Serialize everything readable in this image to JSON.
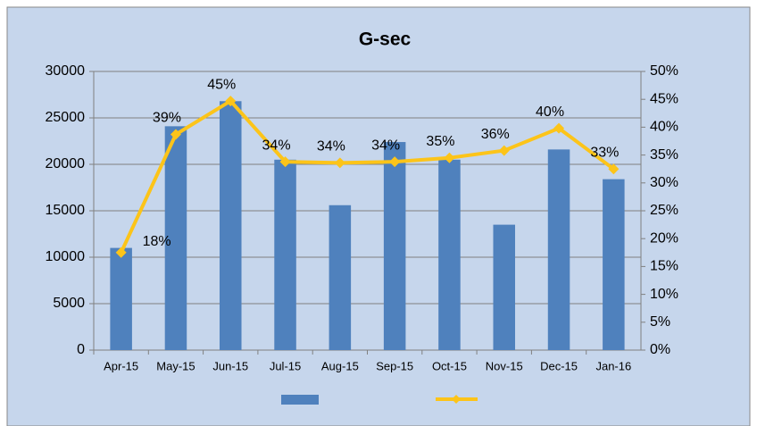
{
  "chart_data": {
    "type": "bar-line",
    "title": "G-sec",
    "categories": [
      "Apr-15",
      "May-15",
      "Jun-15",
      "Jul-15",
      "Aug-15",
      "Sep-15",
      "Oct-15",
      "Nov-15",
      "Dec-15",
      "Jan-16"
    ],
    "series": [
      {
        "type": "bar",
        "color": "#4f81bd",
        "values": [
          11000,
          24100,
          26800,
          20500,
          15600,
          22400,
          20500,
          13500,
          21600,
          18400
        ]
      },
      {
        "type": "line",
        "axis": "y2",
        "color": "#fcc419",
        "values": [
          17.5,
          38.7,
          44.7,
          33.8,
          33.6,
          33.8,
          34.5,
          35.8,
          39.8,
          32.5
        ],
        "value_labels": [
          "18%",
          "39%",
          "45%",
          "34%",
          "34%",
          "34%",
          "35%",
          "36%",
          "40%",
          "33%"
        ]
      }
    ],
    "ylim": [
      0,
      30000
    ],
    "yticks": [
      0,
      5000,
      10000,
      15000,
      20000,
      25000,
      30000
    ],
    "y2lim": [
      0,
      50
    ],
    "y2ticks": [
      {
        "value": 0,
        "label": "0%"
      },
      {
        "value": 5,
        "label": "5%"
      },
      {
        "value": 10,
        "label": "10%"
      },
      {
        "value": 15,
        "label": "15%"
      },
      {
        "value": 20,
        "label": "20%"
      },
      {
        "value": 25,
        "label": "25%"
      },
      {
        "value": 30,
        "label": "30%"
      },
      {
        "value": 35,
        "label": "35%"
      },
      {
        "value": 40,
        "label": "40%"
      },
      {
        "value": 45,
        "label": "45%"
      },
      {
        "value": 50,
        "label": "50%"
      }
    ],
    "grid": true
  }
}
